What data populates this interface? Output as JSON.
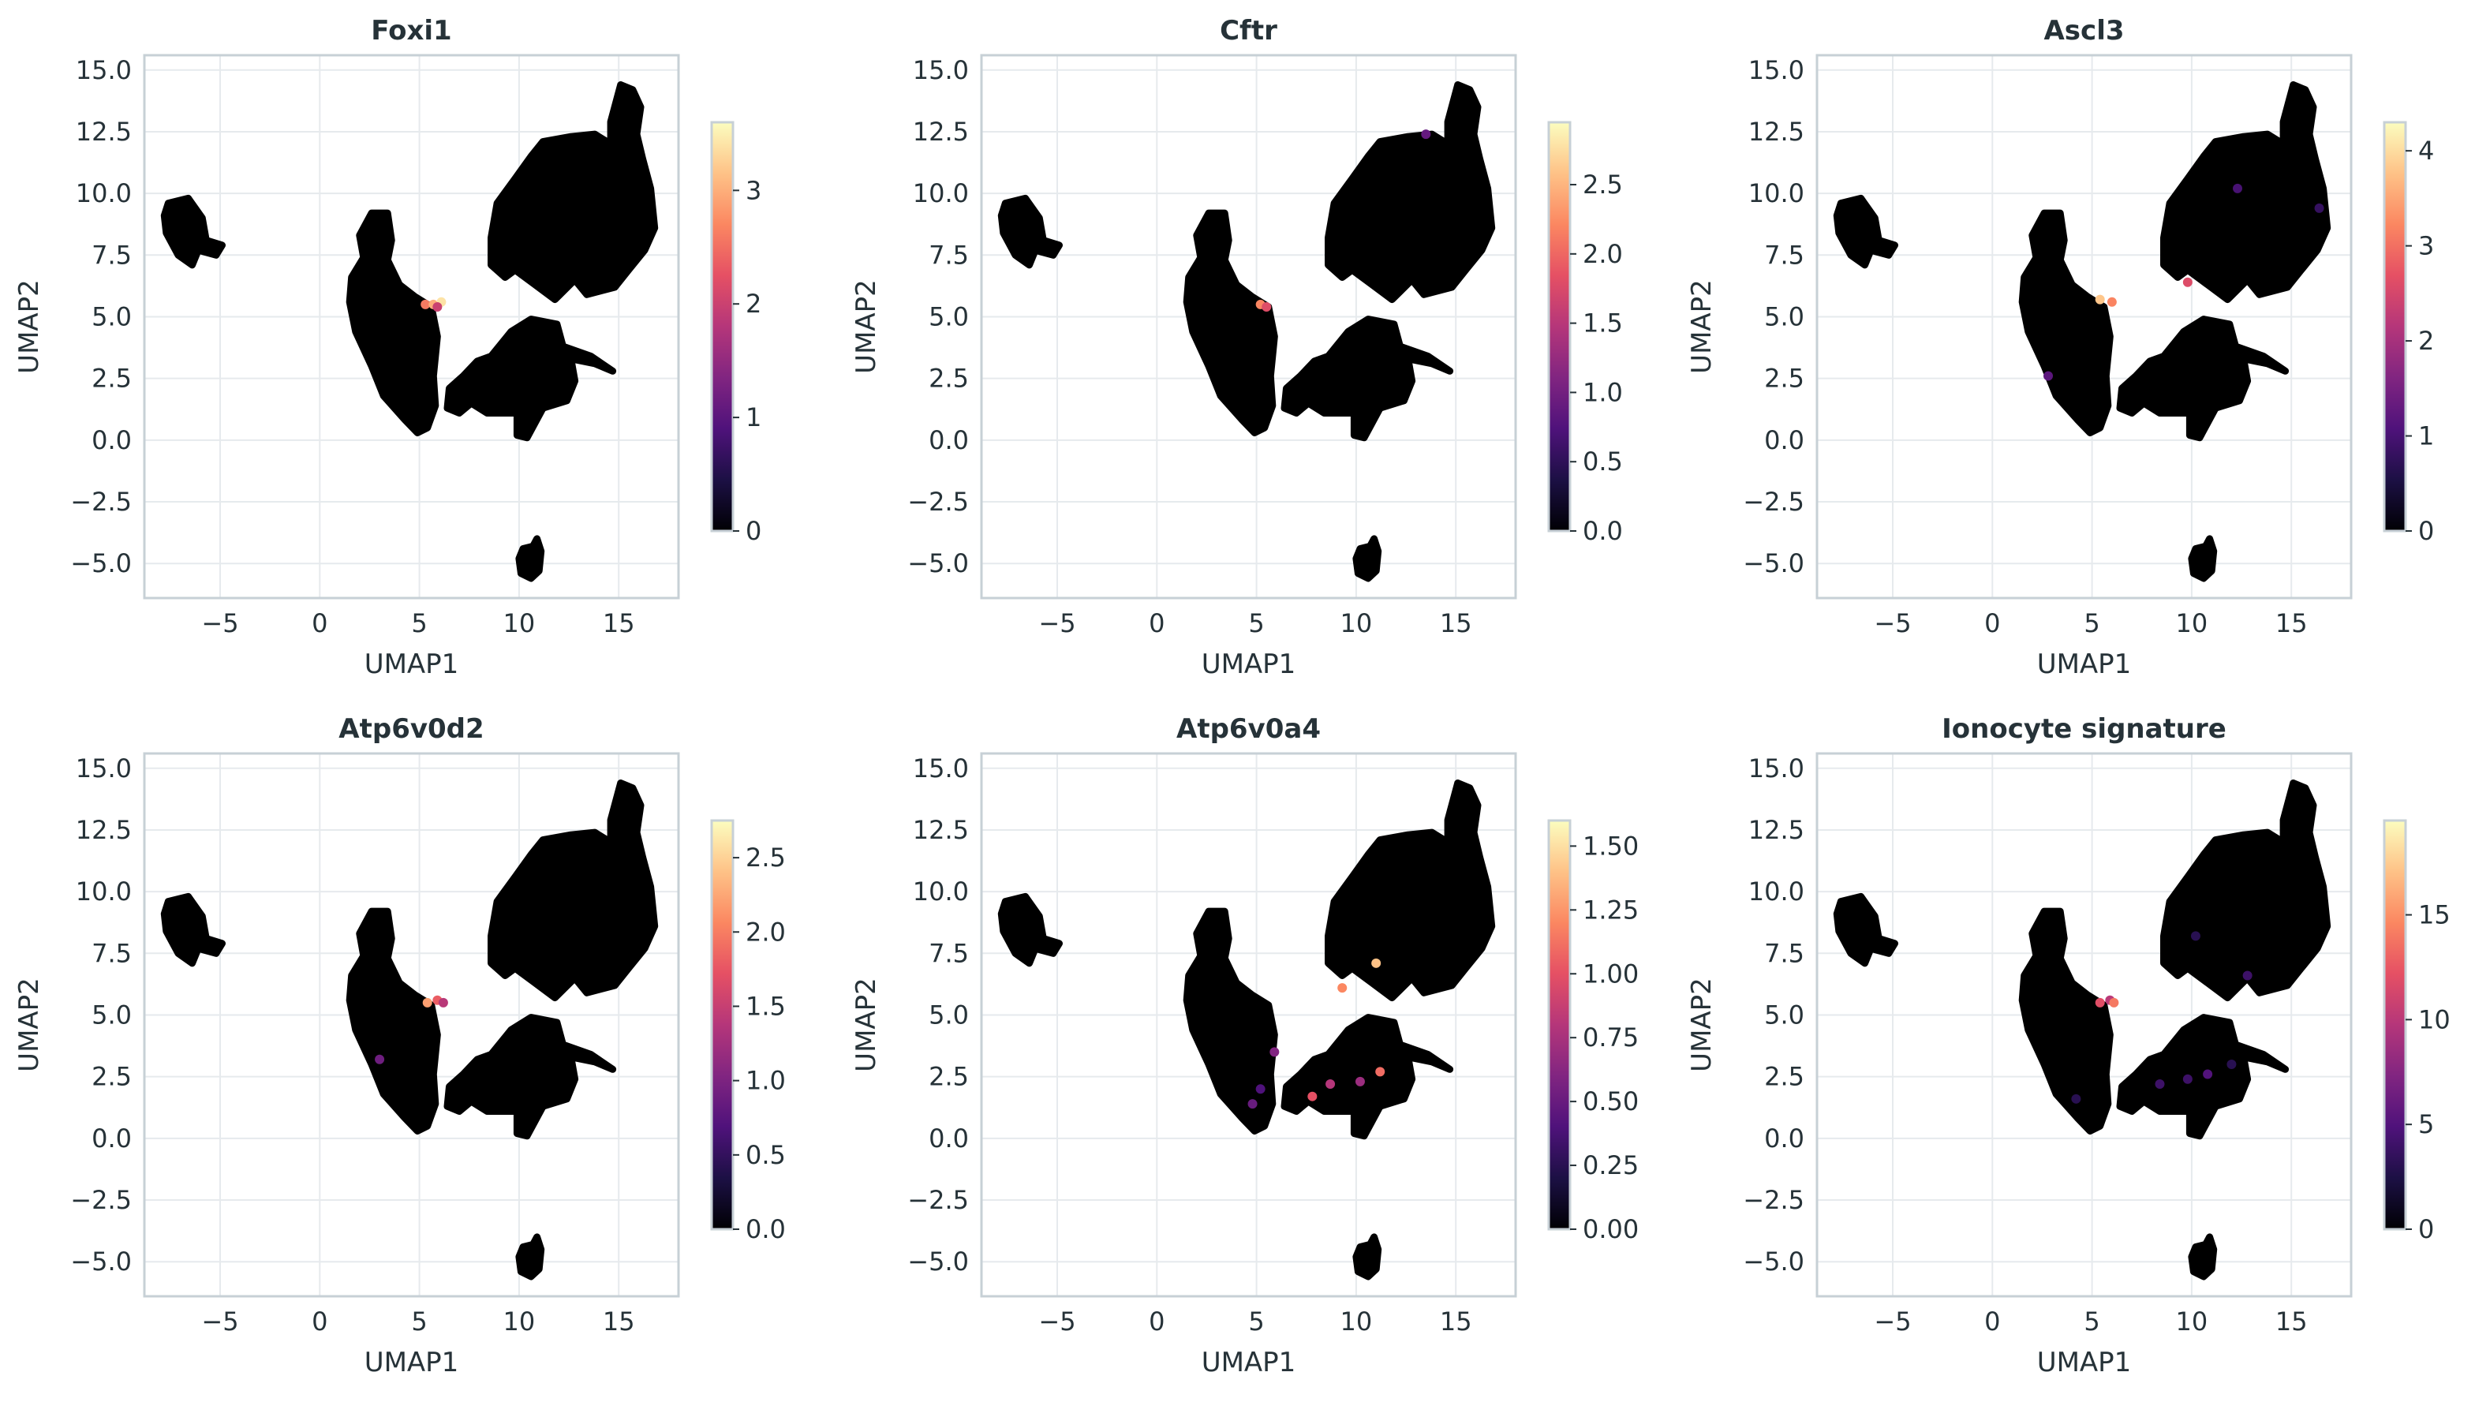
{
  "chart_data": [
    {
      "type": "scatter",
      "title": "Foxi1",
      "xlabel": "UMAP1",
      "ylabel": "UMAP2",
      "xlim": [
        -8.8,
        18.0
      ],
      "ylim": [
        -6.4,
        15.6
      ],
      "xticks": [
        -5,
        0,
        5,
        10,
        15
      ],
      "xtick_labels": [
        "−5",
        "0",
        "5",
        "10",
        "15"
      ],
      "yticks": [
        -5.0,
        -2.5,
        0.0,
        2.5,
        5.0,
        7.5,
        10.0,
        12.5,
        15.0
      ],
      "ytick_labels": [
        "−5.0",
        "−2.5",
        "0.0",
        "2.5",
        "5.0",
        "7.5",
        "10.0",
        "12.5",
        "15.0"
      ],
      "grid": true,
      "colormap": "magma",
      "colorbar": {
        "min": 0,
        "max": 3.6,
        "ticks": [
          0,
          1,
          2,
          3
        ],
        "tick_labels": [
          "0",
          "1",
          "2",
          "3"
        ]
      },
      "highlights": [
        {
          "x": 5.3,
          "y": 5.5,
          "value": 2.6
        },
        {
          "x": 5.7,
          "y": 5.5,
          "value": 3.0
        },
        {
          "x": 6.1,
          "y": 5.6,
          "value": 3.4
        },
        {
          "x": 5.9,
          "y": 5.4,
          "value": 2.0
        }
      ]
    },
    {
      "type": "scatter",
      "title": "Cftr",
      "xlabel": "UMAP1",
      "ylabel": "UMAP2",
      "xlim": [
        -8.8,
        18.0
      ],
      "ylim": [
        -6.4,
        15.6
      ],
      "xticks": [
        -5,
        0,
        5,
        10,
        15
      ],
      "xtick_labels": [
        "−5",
        "0",
        "5",
        "10",
        "15"
      ],
      "yticks": [
        -5.0,
        -2.5,
        0.0,
        2.5,
        5.0,
        7.5,
        10.0,
        12.5,
        15.0
      ],
      "ytick_labels": [
        "−5.0",
        "−2.5",
        "0.0",
        "2.5",
        "5.0",
        "7.5",
        "10.0",
        "12.5",
        "15.0"
      ],
      "grid": true,
      "colormap": "magma",
      "colorbar": {
        "min": 0,
        "max": 2.95,
        "ticks": [
          0.0,
          0.5,
          1.0,
          1.5,
          2.0,
          2.5
        ],
        "tick_labels": [
          "0.0",
          "0.5",
          "1.0",
          "1.5",
          "2.0",
          "2.5"
        ]
      },
      "highlights": [
        {
          "x": 5.2,
          "y": 5.5,
          "value": 2.2
        },
        {
          "x": 5.5,
          "y": 5.4,
          "value": 1.8
        },
        {
          "x": 13.5,
          "y": 12.4,
          "value": 0.9
        }
      ]
    },
    {
      "type": "scatter",
      "title": "Ascl3",
      "xlabel": "UMAP1",
      "ylabel": "UMAP2",
      "xlim": [
        -8.8,
        18.0
      ],
      "ylim": [
        -6.4,
        15.6
      ],
      "xticks": [
        -5,
        0,
        5,
        10,
        15
      ],
      "xtick_labels": [
        "−5",
        "0",
        "5",
        "10",
        "15"
      ],
      "yticks": [
        -5.0,
        -2.5,
        0.0,
        2.5,
        5.0,
        7.5,
        10.0,
        12.5,
        15.0
      ],
      "ytick_labels": [
        "−5.0",
        "−2.5",
        "0.0",
        "2.5",
        "5.0",
        "7.5",
        "10.0",
        "12.5",
        "15.0"
      ],
      "grid": true,
      "colormap": "magma",
      "colorbar": {
        "min": 0,
        "max": 4.3,
        "ticks": [
          0,
          1,
          2,
          3,
          4
        ],
        "tick_labels": [
          "0",
          "1",
          "2",
          "3",
          "4"
        ]
      },
      "highlights": [
        {
          "x": 5.4,
          "y": 5.7,
          "value": 3.8
        },
        {
          "x": 6.0,
          "y": 5.6,
          "value": 3.2
        },
        {
          "x": 9.8,
          "y": 6.4,
          "value": 2.6
        },
        {
          "x": 2.8,
          "y": 2.6,
          "value": 1.2
        },
        {
          "x": 12.3,
          "y": 10.2,
          "value": 1.0
        },
        {
          "x": 16.4,
          "y": 9.4,
          "value": 0.8
        }
      ]
    },
    {
      "type": "scatter",
      "title": "Atp6v0d2",
      "xlabel": "UMAP1",
      "ylabel": "UMAP2",
      "xlim": [
        -8.8,
        18.0
      ],
      "ylim": [
        -6.4,
        15.6
      ],
      "xticks": [
        -5,
        0,
        5,
        10,
        15
      ],
      "xtick_labels": [
        "−5",
        "0",
        "5",
        "10",
        "15"
      ],
      "yticks": [
        -5.0,
        -2.5,
        0.0,
        2.5,
        5.0,
        7.5,
        10.0,
        12.5,
        15.0
      ],
      "ytick_labels": [
        "−5.0",
        "−2.5",
        "0.0",
        "2.5",
        "5.0",
        "7.5",
        "10.0",
        "12.5",
        "15.0"
      ],
      "grid": true,
      "colormap": "magma",
      "colorbar": {
        "min": 0,
        "max": 2.75,
        "ticks": [
          0.0,
          0.5,
          1.0,
          1.5,
          2.0,
          2.5
        ],
        "tick_labels": [
          "0.0",
          "0.5",
          "1.0",
          "1.5",
          "2.0",
          "2.5"
        ]
      },
      "highlights": [
        {
          "x": 5.4,
          "y": 5.5,
          "value": 2.2
        },
        {
          "x": 5.9,
          "y": 5.6,
          "value": 1.8
        },
        {
          "x": 6.2,
          "y": 5.5,
          "value": 1.4
        },
        {
          "x": 3.0,
          "y": 3.2,
          "value": 0.9
        }
      ]
    },
    {
      "type": "scatter",
      "title": "Atp6v0a4",
      "xlabel": "UMAP1",
      "ylabel": "UMAP2",
      "xlim": [
        -8.8,
        18.0
      ],
      "ylim": [
        -6.4,
        15.6
      ],
      "xticks": [
        -5,
        0,
        5,
        10,
        15
      ],
      "xtick_labels": [
        "−5",
        "0",
        "5",
        "10",
        "15"
      ],
      "yticks": [
        -5.0,
        -2.5,
        0.0,
        2.5,
        5.0,
        7.5,
        10.0,
        12.5,
        15.0
      ],
      "ytick_labels": [
        "−5.0",
        "−2.5",
        "0.0",
        "2.5",
        "5.0",
        "7.5",
        "10.0",
        "12.5",
        "15.0"
      ],
      "grid": true,
      "colormap": "magma",
      "colorbar": {
        "min": 0,
        "max": 1.6,
        "ticks": [
          0.0,
          0.25,
          0.5,
          0.75,
          1.0,
          1.25,
          1.5
        ],
        "tick_labels": [
          "0.00",
          "0.25",
          "0.50",
          "0.75",
          "1.00",
          "1.25",
          "1.50"
        ]
      },
      "highlights": [
        {
          "x": 9.3,
          "y": 6.1,
          "value": 1.2
        },
        {
          "x": 11.0,
          "y": 7.1,
          "value": 1.4
        },
        {
          "x": 7.8,
          "y": 1.7,
          "value": 1.0
        },
        {
          "x": 8.7,
          "y": 2.2,
          "value": 0.8
        },
        {
          "x": 11.2,
          "y": 2.7,
          "value": 1.1
        },
        {
          "x": 10.2,
          "y": 2.3,
          "value": 0.7
        },
        {
          "x": 5.9,
          "y": 3.5,
          "value": 0.6
        },
        {
          "x": 4.8,
          "y": 1.4,
          "value": 0.5
        },
        {
          "x": 5.2,
          "y": 2.0,
          "value": 0.4
        }
      ]
    },
    {
      "type": "scatter",
      "title": "Ionocyte signature",
      "xlabel": "UMAP1",
      "ylabel": "UMAP2",
      "xlim": [
        -8.8,
        18.0
      ],
      "ylim": [
        -6.4,
        15.6
      ],
      "xticks": [
        -5,
        0,
        5,
        10,
        15
      ],
      "xtick_labels": [
        "−5",
        "0",
        "5",
        "10",
        "15"
      ],
      "yticks": [
        -5.0,
        -2.5,
        0.0,
        2.5,
        5.0,
        7.5,
        10.0,
        12.5,
        15.0
      ],
      "ytick_labels": [
        "−5.0",
        "−2.5",
        "0.0",
        "2.5",
        "5.0",
        "7.5",
        "10.0",
        "12.5",
        "15.0"
      ],
      "grid": true,
      "colormap": "magma",
      "colorbar": {
        "min": 0,
        "max": 19.5,
        "ticks": [
          0,
          5,
          10,
          15
        ],
        "tick_labels": [
          "0",
          "5",
          "10",
          "15"
        ]
      },
      "highlights": [
        {
          "x": 5.4,
          "y": 5.5,
          "value": 12
        },
        {
          "x": 5.9,
          "y": 5.6,
          "value": 10
        },
        {
          "x": 6.1,
          "y": 5.5,
          "value": 14
        },
        {
          "x": 9.8,
          "y": 2.4,
          "value": 4
        },
        {
          "x": 10.8,
          "y": 2.6,
          "value": 5
        },
        {
          "x": 12.0,
          "y": 3.0,
          "value": 3
        },
        {
          "x": 8.4,
          "y": 2.2,
          "value": 4
        },
        {
          "x": 4.2,
          "y": 1.6,
          "value": 3
        },
        {
          "x": 12.8,
          "y": 6.6,
          "value": 4
        },
        {
          "x": 10.2,
          "y": 8.2,
          "value": 3
        }
      ]
    }
  ]
}
